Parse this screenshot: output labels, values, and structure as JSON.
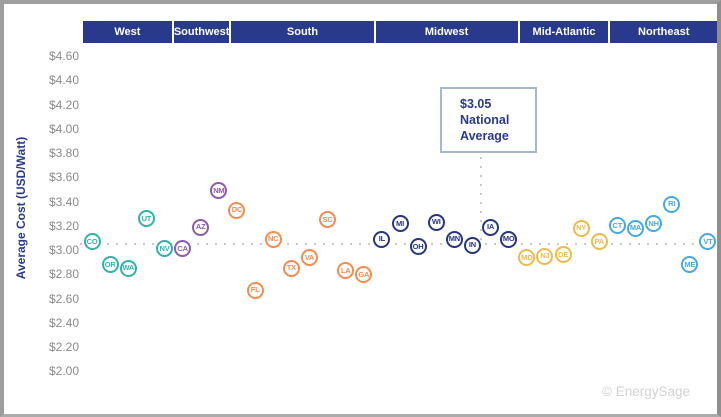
{
  "y_axis": {
    "title": "Average Cost (USD/Watt)"
  },
  "callout": {
    "value": "$3.05",
    "label_line1": "National",
    "label_line2": "Average"
  },
  "footer": {
    "credit": "© EnergySage"
  },
  "chart_data": {
    "type": "scatter",
    "title": "",
    "ylabel": "Average Cost (USD/Watt)",
    "ylim": [
      2.0,
      4.6
    ],
    "ytick_step": 0.2,
    "ytick_format": "$X.XX",
    "grid": "off",
    "national_average": 3.05,
    "national_average_label": "$3.05 National Average",
    "dot_line_color": "#c9c9c9",
    "header_color": "#293a8d",
    "regions": [
      {
        "name": "West",
        "color": "#2fb3ab",
        "states": [
          {
            "label": "CO",
            "value": 3.07
          },
          {
            "label": "OR",
            "value": 2.88
          },
          {
            "label": "WA",
            "value": 2.85
          },
          {
            "label": "UT",
            "value": 3.26
          },
          {
            "label": "NV",
            "value": 3.01
          }
        ]
      },
      {
        "name": "Southwest",
        "color": "#8c5bae",
        "states": [
          {
            "label": "CA",
            "value": 3.01
          },
          {
            "label": "AZ",
            "value": 3.19
          },
          {
            "label": "NM",
            "value": 3.49
          }
        ]
      },
      {
        "name": "South",
        "color": "#f68b4e",
        "states": [
          {
            "label": "DC",
            "value": 3.33
          },
          {
            "label": "FL",
            "value": 2.67
          },
          {
            "label": "NC",
            "value": 3.09
          },
          {
            "label": "TX",
            "value": 2.85
          },
          {
            "label": "VA",
            "value": 2.94
          },
          {
            "label": "SC",
            "value": 3.25
          },
          {
            "label": "LA",
            "value": 2.83
          },
          {
            "label": "GA",
            "value": 2.8
          }
        ]
      },
      {
        "name": "Midwest",
        "color": "#26367f",
        "states": [
          {
            "label": "IL",
            "value": 3.09
          },
          {
            "label": "MI",
            "value": 3.22
          },
          {
            "label": "OH",
            "value": 3.03
          },
          {
            "label": "WI",
            "value": 3.23
          },
          {
            "label": "MN",
            "value": 3.09
          },
          {
            "label": "IN",
            "value": 3.04
          },
          {
            "label": "IA",
            "value": 3.19
          },
          {
            "label": "MO",
            "value": 3.09
          }
        ]
      },
      {
        "name": "Mid-Atlantic",
        "color": "#edbb4c",
        "states": [
          {
            "label": "MD",
            "value": 2.94
          },
          {
            "label": "NJ",
            "value": 2.95
          },
          {
            "label": "DE",
            "value": 2.96
          },
          {
            "label": "NY",
            "value": 3.18
          },
          {
            "label": "PA",
            "value": 3.07
          }
        ]
      },
      {
        "name": "Northeast",
        "color": "#45a9e4",
        "states": [
          {
            "label": "CT",
            "value": 3.2
          },
          {
            "label": "MA",
            "value": 3.18
          },
          {
            "label": "NH",
            "value": 3.22
          },
          {
            "label": "RI",
            "value": 3.38
          },
          {
            "label": "ME",
            "value": 2.88
          },
          {
            "label": "VT",
            "value": 3.07
          }
        ]
      }
    ]
  }
}
